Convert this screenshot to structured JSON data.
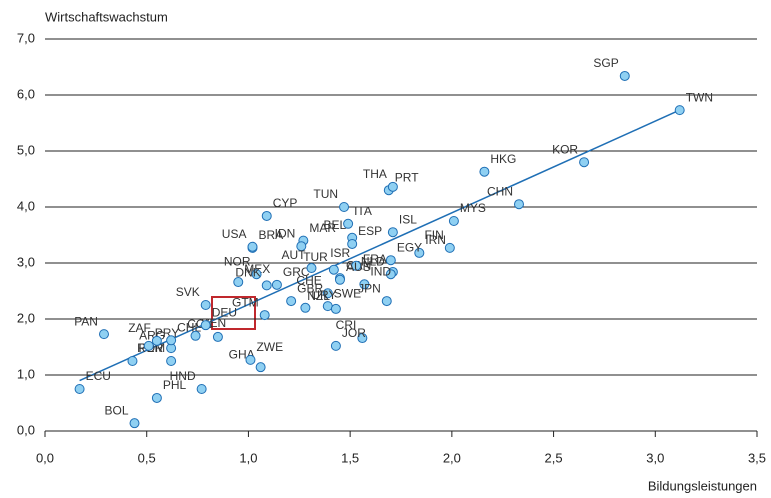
{
  "chart_data": {
    "type": "scatter",
    "y_label": "Wirtschaftswachstum",
    "x_label": "Bildungsleistungen",
    "xlim": [
      0,
      3.5
    ],
    "ylim": [
      0,
      7
    ],
    "xticks": [
      {
        "value": 0,
        "label": "0,0"
      },
      {
        "value": 0.5,
        "label": "0,5"
      },
      {
        "value": 1,
        "label": "1,0"
      },
      {
        "value": 1.5,
        "label": "1,5"
      },
      {
        "value": 2,
        "label": "2,0"
      },
      {
        "value": 2.5,
        "label": "2,5"
      },
      {
        "value": 3,
        "label": "3,0"
      },
      {
        "value": 3.5,
        "label": "3,5"
      }
    ],
    "yticks": [
      {
        "value": 0,
        "label": "0,0"
      },
      {
        "value": 1,
        "label": "1,0"
      },
      {
        "value": 2,
        "label": "2,0"
      },
      {
        "value": 3,
        "label": "3,0"
      },
      {
        "value": 4,
        "label": "4,0"
      },
      {
        "value": 5,
        "label": "5,0"
      },
      {
        "value": 6,
        "label": "6,0"
      },
      {
        "value": 7,
        "label": "7,0"
      }
    ],
    "grid": true,
    "color": "#8fd0f2",
    "trend_color": "#1f6fb5",
    "labels": [
      "SGP",
      "TWN",
      "KOR",
      "HKG",
      "CHN",
      "MYS",
      "FIN",
      "IRN",
      "FRA",
      "PRT",
      "THA",
      "ISL",
      "TUN",
      "ITA",
      "BEL",
      "ESP",
      "TUR",
      "CAN",
      "ISR",
      "EGY",
      "NLD",
      "IND",
      "JPN",
      "AUS",
      "CHE",
      "SWE",
      "NZL",
      "URY",
      "CRI",
      "JOR",
      "GHA",
      "ZWE",
      "HND",
      "PHL",
      "BOL",
      "ECU",
      "ROM",
      "PER",
      "ARG",
      "PRY",
      "ZAF",
      "CHL",
      "PAN",
      "VEN",
      "COL",
      "DEU",
      "SVK",
      "MEX",
      "NOR",
      "GRC",
      "DNK",
      "GBR",
      "GTM",
      "BRA",
      "USA",
      "MAR",
      "IDN",
      "CYP",
      "AUT"
    ],
    "x": [
      2.85,
      3.12,
      2.65,
      2.16,
      2.33,
      2.01,
      1.99,
      1.84,
      1.71,
      1.69,
      1.71,
      1.71,
      1.47,
      1.49,
      1.51,
      1.51,
      1.42,
      1.45,
      1.53,
      1.7,
      1.7,
      1.57,
      1.68,
      1.45,
      1.39,
      1.39,
      1.43,
      1.28,
      1.56,
      1.43,
      1.06,
      1.01,
      0.77,
      0.55,
      0.44,
      0.17,
      0.62,
      0.43,
      0.62,
      0.51,
      0.55,
      0.62,
      0.29,
      0.74,
      0.85,
      0.79,
      0.79,
      0.95,
      1.04,
      1.14,
      1.09,
      1.21,
      1.08,
      1.02,
      1.02,
      1.27,
      1.26,
      1.09,
      1.31
    ],
    "y": [
      6.34,
      5.73,
      4.8,
      4.63,
      4.05,
      3.75,
      3.27,
      3.18,
      2.84,
      4.3,
      4.36,
      3.55,
      4.0,
      3.7,
      3.45,
      3.34,
      2.88,
      2.73,
      2.95,
      3.05,
      2.8,
      2.62,
      2.32,
      2.7,
      2.46,
      2.23,
      2.18,
      2.2,
      1.66,
      1.52,
      1.14,
      1.27,
      0.75,
      0.59,
      0.14,
      0.75,
      1.25,
      1.25,
      1.48,
      1.52,
      1.61,
      1.62,
      1.73,
      1.7,
      1.68,
      1.89,
      2.25,
      2.66,
      2.8,
      2.61,
      2.6,
      2.32,
      2.07,
      3.27,
      3.29,
      3.4,
      3.3,
      3.84,
      2.91
    ],
    "trendline": {
      "x": [
        0.17,
        3.12
      ],
      "y": [
        0.9,
        5.73
      ]
    }
  }
}
